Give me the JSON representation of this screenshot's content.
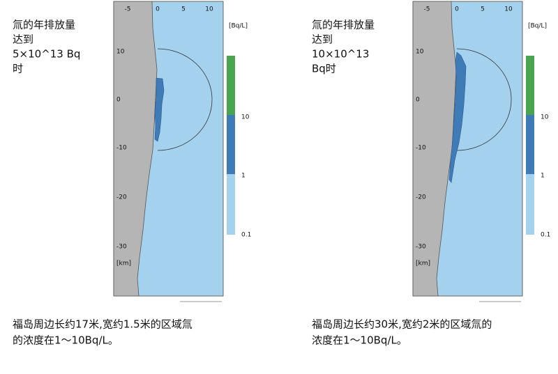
{
  "panels": [
    {
      "label_lines": [
        "氚的年排放量",
        "达到",
        "5×10^13 Bq",
        "时"
      ],
      "x_ticks": [
        "-5",
        "0",
        "5",
        "10"
      ],
      "y_ticks": [
        "10",
        "0",
        "-10",
        "-20",
        "-30"
      ],
      "distance_unit": "[km]",
      "colorbar_unit": "[Bq/L]",
      "colorbar_labels": [
        "10",
        "1",
        "0.1"
      ],
      "caption_lines": [
        "福岛周边长约17米,宽约1.5米的区域氚",
        "的浓度在1～10Bq/L。"
      ]
    },
    {
      "label_lines": [
        "氚的年排放量",
        "达到",
        "10×10^13",
        "Bq时"
      ],
      "x_ticks": [
        "-5",
        "0",
        "5",
        "10"
      ],
      "y_ticks": [
        "10",
        "0",
        "-10",
        "-20",
        "-30"
      ],
      "distance_unit": "[km]",
      "colorbar_unit": "[Bq/L]",
      "colorbar_labels": [
        "10",
        "1",
        "0.1"
      ],
      "caption_lines": [
        "福岛周边长约30米,宽约2米的区域氚的",
        "浓度在1～10Bq/L。"
      ]
    }
  ]
}
